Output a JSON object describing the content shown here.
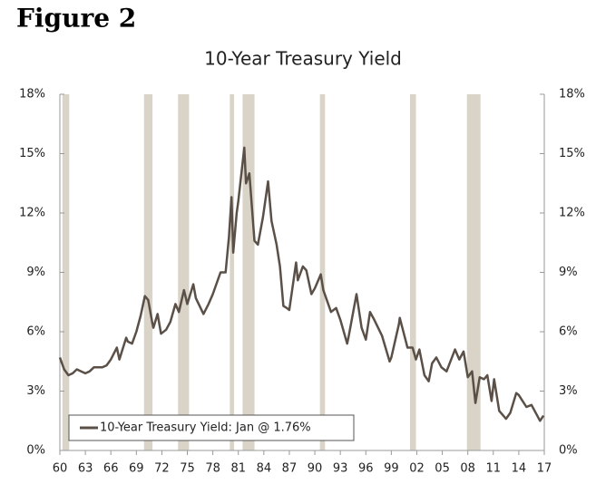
{
  "figure_label": "Figure 2",
  "chart_data": {
    "type": "line",
    "title": "10-Year Treasury Yield",
    "legend": "bottom-left",
    "recession_color": "#d9d4c7",
    "recessions": [
      [
        1960.3,
        1961.1
      ],
      [
        1969.9,
        1970.9
      ],
      [
        1973.9,
        1975.2
      ],
      [
        1980.0,
        1980.5
      ],
      [
        1981.5,
        1982.9
      ],
      [
        1990.6,
        1991.2
      ],
      [
        2001.2,
        2001.9
      ],
      [
        2007.9,
        2009.5
      ]
    ],
    "xlim": [
      1960,
      2017
    ],
    "xticks": [
      {
        "value": 1960,
        "label": "60"
      },
      {
        "value": 1963,
        "label": "63"
      },
      {
        "value": 1966,
        "label": "66"
      },
      {
        "value": 1969,
        "label": "69"
      },
      {
        "value": 1972,
        "label": "72"
      },
      {
        "value": 1975,
        "label": "75"
      },
      {
        "value": 1978,
        "label": "78"
      },
      {
        "value": 1981,
        "label": "81"
      },
      {
        "value": 1984,
        "label": "84"
      },
      {
        "value": 1987,
        "label": "87"
      },
      {
        "value": 1990,
        "label": "90"
      },
      {
        "value": 1993,
        "label": "93"
      },
      {
        "value": 1996,
        "label": "96"
      },
      {
        "value": 1999,
        "label": "99"
      },
      {
        "value": 2002,
        "label": "02"
      },
      {
        "value": 2005,
        "label": "05"
      },
      {
        "value": 2008,
        "label": "08"
      },
      {
        "value": 2011,
        "label": "11"
      },
      {
        "value": 2014,
        "label": "14"
      },
      {
        "value": 2017,
        "label": "17"
      }
    ],
    "ylim": [
      0,
      18
    ],
    "yticks": [
      {
        "value": 0,
        "label": "0%"
      },
      {
        "value": 3,
        "label": "3%"
      },
      {
        "value": 6,
        "label": "6%"
      },
      {
        "value": 9,
        "label": "9%"
      },
      {
        "value": 12,
        "label": "12%"
      },
      {
        "value": 15,
        "label": "15%"
      },
      {
        "value": 18,
        "label": "18%"
      }
    ],
    "y2lim": [
      0,
      18
    ],
    "y2ticks": [
      {
        "value": 0,
        "label": "0%"
      },
      {
        "value": 3,
        "label": "3%"
      },
      {
        "value": 6,
        "label": "6%"
      },
      {
        "value": 9,
        "label": "9%"
      },
      {
        "value": 12,
        "label": "12%"
      },
      {
        "value": 15,
        "label": "15%"
      },
      {
        "value": 18,
        "label": "18%"
      }
    ],
    "x": [
      1960.0,
      1960.5,
      1961.0,
      1961.5,
      1962.0,
      1962.5,
      1963.0,
      1963.5,
      1964.0,
      1964.5,
      1965.0,
      1965.5,
      1966.0,
      1966.7,
      1967.0,
      1967.8,
      1968.0,
      1968.5,
      1969.0,
      1969.5,
      1970.0,
      1970.4,
      1970.9,
      1971.0,
      1971.5,
      1971.9,
      1972.5,
      1973.0,
      1973.6,
      1974.0,
      1974.6,
      1975.0,
      1975.7,
      1976.0,
      1976.9,
      1977.5,
      1978.0,
      1978.9,
      1979.5,
      1979.9,
      1980.2,
      1980.4,
      1980.8,
      1981.0,
      1981.7,
      1981.9,
      1982.3,
      1982.9,
      1983.3,
      1983.9,
      1984.5,
      1984.9,
      1985.5,
      1985.9,
      1986.3,
      1986.7,
      1987.0,
      1987.8,
      1988.0,
      1988.6,
      1989.0,
      1989.6,
      1990.0,
      1990.7,
      1991.0,
      1991.9,
      1992.5,
      1993.0,
      1993.8,
      1994.0,
      1994.9,
      1995.5,
      1996.0,
      1996.5,
      1997.0,
      1997.9,
      1998.8,
      1999.0,
      1999.9,
      2000.0,
      2000.9,
      2001.5,
      2001.9,
      2002.3,
      2002.9,
      2003.4,
      2003.8,
      2004.3,
      2004.9,
      2005.5,
      2006.5,
      2007.0,
      2007.5,
      2008.0,
      2008.5,
      2008.9,
      2009.4,
      2009.9,
      2010.3,
      2010.8,
      2011.1,
      2011.7,
      2012.5,
      2013.0,
      2013.7,
      2014.0,
      2014.9,
      2015.5,
      2016.5,
      2016.9
    ],
    "series": [
      {
        "name": "10-Year Treasury Yield: Jan @ 1.76%",
        "color": "#5b5047",
        "values": [
          4.7,
          4.1,
          3.8,
          3.9,
          4.1,
          4.0,
          3.9,
          4.0,
          4.2,
          4.2,
          4.2,
          4.3,
          4.6,
          5.2,
          4.6,
          5.7,
          5.5,
          5.4,
          6.0,
          6.8,
          7.8,
          7.6,
          6.4,
          6.2,
          6.9,
          5.9,
          6.1,
          6.5,
          7.4,
          7.0,
          8.1,
          7.4,
          8.4,
          7.7,
          6.9,
          7.4,
          7.9,
          9.0,
          9.0,
          10.8,
          12.8,
          10.0,
          12.0,
          12.6,
          15.3,
          13.5,
          14.0,
          10.6,
          10.4,
          11.8,
          13.6,
          11.6,
          10.4,
          9.3,
          7.3,
          7.2,
          7.1,
          9.5,
          8.6,
          9.3,
          9.1,
          7.9,
          8.2,
          8.9,
          8.1,
          7.0,
          7.2,
          6.6,
          5.4,
          5.8,
          7.9,
          6.2,
          5.6,
          7.0,
          6.6,
          5.8,
          4.5,
          4.7,
          6.4,
          6.7,
          5.2,
          5.2,
          4.6,
          5.1,
          3.8,
          3.5,
          4.4,
          4.7,
          4.2,
          4.0,
          5.1,
          4.6,
          5.0,
          3.7,
          4.0,
          2.4,
          3.7,
          3.6,
          3.8,
          2.5,
          3.6,
          2.0,
          1.6,
          1.9,
          2.9,
          2.8,
          2.2,
          2.3,
          1.5,
          1.76
        ]
      }
    ]
  }
}
